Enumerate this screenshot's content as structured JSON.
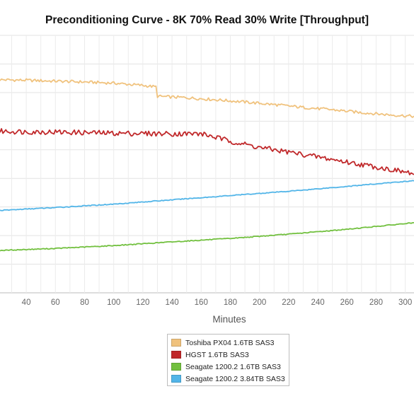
{
  "chart_data": {
    "type": "line",
    "title": "Preconditioning Curve - 8K 70% Read 30% Write [Throughput]",
    "xlabel": "Minutes",
    "ylabel": "",
    "xlim": [
      22,
      306
    ],
    "ylim": [
      0,
      9
    ],
    "grid": true,
    "legend": "bottom-center",
    "x_ticks": [
      40,
      60,
      80,
      100,
      120,
      140,
      160,
      180,
      200,
      220,
      240,
      260,
      280,
      300
    ],
    "series": [
      {
        "name": "Toshiba PX04 1.6TB SAS3",
        "color": "#f0c27d",
        "x": [
          22,
          40,
          60,
          80,
          100,
          120,
          129,
          130,
          150,
          170,
          190,
          210,
          230,
          250,
          270,
          290,
          306
        ],
        "y": [
          7.45,
          7.43,
          7.4,
          7.37,
          7.33,
          7.25,
          7.2,
          6.87,
          6.82,
          6.75,
          6.67,
          6.58,
          6.48,
          6.4,
          6.3,
          6.22,
          6.17
        ]
      },
      {
        "name": "HGST 1.6TB SAS3",
        "color": "#c0282a",
        "x": [
          22,
          40,
          60,
          80,
          100,
          120,
          140,
          160,
          165,
          180,
          200,
          220,
          240,
          260,
          280,
          300,
          306
        ],
        "y": [
          5.65,
          5.63,
          5.62,
          5.6,
          5.58,
          5.57,
          5.56,
          5.56,
          5.5,
          5.3,
          5.08,
          4.92,
          4.75,
          4.57,
          4.4,
          4.22,
          4.15
        ]
      },
      {
        "name": "Seagate 1200.2 1.6TB SAS3",
        "color": "#72c03f",
        "x": [
          22,
          60,
          100,
          140,
          180,
          220,
          260,
          306
        ],
        "y": [
          1.48,
          1.55,
          1.65,
          1.78,
          1.9,
          2.05,
          2.22,
          2.45
        ]
      },
      {
        "name": "Seagate 1200.2 3.84TB SAS3",
        "color": "#52b5e8",
        "x": [
          22,
          60,
          100,
          140,
          180,
          220,
          260,
          306
        ],
        "y": [
          2.88,
          2.98,
          3.1,
          3.25,
          3.4,
          3.55,
          3.72,
          3.92
        ]
      }
    ]
  }
}
